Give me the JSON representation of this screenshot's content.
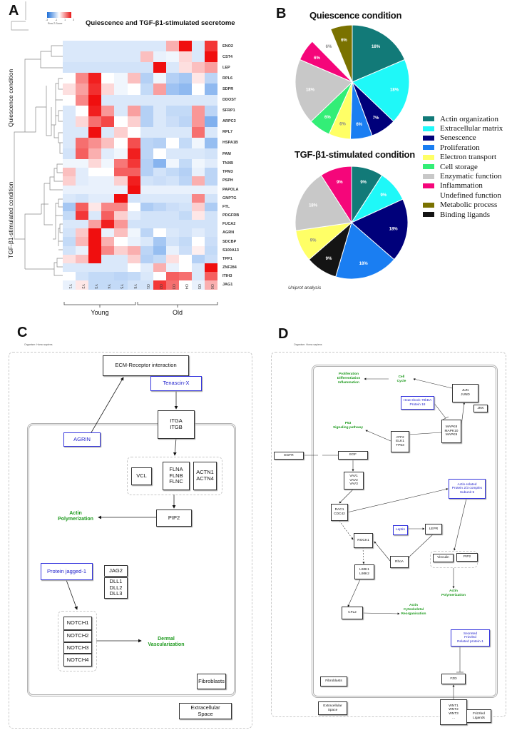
{
  "panel_a": {
    "letter": "A",
    "title": "Quiescence and TGF-β1-stimulated  secretome",
    "color_key": {
      "ticks": [
        "-3",
        "-1",
        "1",
        "3"
      ],
      "label": "Row Z-Score"
    },
    "side_labels": [
      "Quiescence condition",
      "TGF-β1-stimulated condition"
    ],
    "groups": [
      "Young",
      "Old"
    ],
    "chart_data": {
      "type": "heatmap",
      "title": "Quiescence and TGF-β1-stimulated  secretome",
      "columns": [
        "Y1",
        "Y2",
        "Y3",
        "Y4",
        "Y5",
        "Y6",
        "O1",
        "O2",
        "O3",
        "O4",
        "O5",
        "O6"
      ],
      "rows": [
        "ENO2",
        "CST4",
        "LEP",
        "RPL6",
        "SDPR",
        "DDOST",
        "SFRP1",
        "ARPC3",
        "RPL7",
        "HSPA1B",
        "PAM",
        "TNXB",
        "TPM3",
        "PSPH",
        "PAPOLA",
        "GNPTG",
        "FTL",
        "PDGFRB",
        "FUCA2",
        "AGRN",
        "SDCBP",
        "S100A13",
        "TPP1",
        "ZNF284",
        "ITIH3",
        "JAG1"
      ],
      "zrange": [
        -3,
        3
      ],
      "values": [
        [
          -0.5,
          -0.5,
          -0.5,
          -0.5,
          -0.5,
          -0.5,
          -0.5,
          -0.5,
          1,
          3,
          -0.5,
          2.5
        ],
        [
          -0.5,
          -0.5,
          -0.5,
          -0.5,
          -0.5,
          -0.5,
          0.8,
          -0.3,
          -0.2,
          0.5,
          -0.5,
          3
        ],
        [
          -0.6,
          -0.6,
          -0.6,
          -0.6,
          -0.6,
          -0.6,
          -0.6,
          3,
          -0.5,
          0.4,
          0.8,
          1.2
        ],
        [
          0,
          1.5,
          2.8,
          0,
          -0.2,
          0.8,
          -1,
          -0.2,
          -1,
          -1.2,
          0.3,
          -0.9
        ],
        [
          0.4,
          1.2,
          2.6,
          0.5,
          -0.2,
          0,
          -0.8,
          1.2,
          -1.3,
          -1.5,
          0,
          -1.5
        ],
        [
          0,
          1.5,
          3,
          -0.5,
          -0.5,
          -0.5,
          -0.5,
          -0.5,
          -0.5,
          -0.5,
          -0.5,
          -0.5
        ],
        [
          -0.5,
          0,
          2.8,
          1.3,
          -0.5,
          1.2,
          -1,
          -0.5,
          -0.8,
          -0.8,
          1.3,
          -0.9
        ],
        [
          -0.5,
          0.5,
          1.8,
          2.3,
          0,
          0.6,
          -1,
          -0.5,
          -0.7,
          -0.9,
          1.3,
          -1.7
        ],
        [
          -0.5,
          -0.5,
          3,
          -0.5,
          0.6,
          0,
          -0.5,
          -0.5,
          -0.5,
          -0.5,
          1.8,
          -0.5
        ],
        [
          -0.5,
          1.8,
          1.4,
          0.8,
          0,
          2.2,
          -0.9,
          -1,
          0,
          -0.8,
          -0.2,
          -1.4
        ],
        [
          -0.6,
          2,
          1,
          -0.4,
          -0.2,
          2.8,
          -0.9,
          0,
          -0.5,
          -0.5,
          -0.5,
          -0.6
        ],
        [
          -0.2,
          -0.2,
          0.5,
          -0.2,
          1.7,
          2.5,
          -1,
          -1.6,
          -0.2,
          -0.8,
          -0.2,
          -0.4
        ],
        [
          0.8,
          -0.4,
          0,
          0,
          2,
          2,
          -1,
          -0.6,
          -0.8,
          -1,
          -0.3,
          -0.9
        ],
        [
          0.6,
          -0.4,
          -0.3,
          -0.3,
          0.6,
          2.8,
          -0.6,
          -0.7,
          -0.6,
          -0.9,
          1,
          -0.9
        ],
        [
          -0.3,
          -0.3,
          -0.3,
          -0.3,
          -0.3,
          3,
          -0.3,
          -0.3,
          -0.3,
          -0.3,
          -0.3,
          -0.3
        ],
        [
          -0.5,
          -0.6,
          -0.4,
          -0.4,
          3,
          -0.6,
          -0.5,
          -0.5,
          -0.5,
          -0.5,
          1.5,
          -0.6
        ],
        [
          -1.2,
          2,
          0.3,
          1.5,
          1.5,
          0,
          -1.1,
          -0.9,
          -0.7,
          -0.6,
          0.6,
          -1.1
        ],
        [
          -0.8,
          2.5,
          -0.5,
          2,
          0.6,
          -0.4,
          -0.6,
          -0.6,
          -0.6,
          -0.8,
          0.3,
          -0.6
        ],
        [
          -0.5,
          -0.5,
          1.2,
          2.8,
          1.3,
          -0.6,
          -0.6,
          -0.6,
          -0.6,
          -0.6,
          -0.6,
          -0.6
        ],
        [
          -0.6,
          0.7,
          3,
          -0.3,
          0.8,
          -0.2,
          -0.9,
          0,
          -0.5,
          -0.6,
          -0.4,
          -0.6
        ],
        [
          -0.8,
          0.9,
          3,
          1,
          0,
          -0.3,
          -0.5,
          -1.2,
          -0.6,
          -0.8,
          0,
          -0.7
        ],
        [
          -0.6,
          -0.3,
          3,
          1.5,
          0.6,
          1,
          -0.9,
          -1.4,
          -0.3,
          -0.7,
          0.2,
          -0.8
        ],
        [
          0.4,
          0.8,
          3,
          -0.5,
          -0.5,
          0.6,
          -1,
          -0.8,
          0.4,
          0,
          -1,
          -0.7
        ],
        [
          -0.5,
          -0.5,
          -0.5,
          -0.5,
          -0.5,
          0,
          -0.4,
          1,
          -0.3,
          0,
          -0.5,
          3
        ],
        [
          0,
          -0.6,
          -0.8,
          -0.8,
          -0.9,
          -0.8,
          -0.5,
          0,
          2,
          1.8,
          -0.5,
          2
        ],
        [
          -0.3,
          0.3,
          -0.8,
          -0.8,
          -0.8,
          -0.6,
          -0.6,
          2.5,
          1.8,
          0,
          -0.3,
          1
        ]
      ]
    }
  },
  "panel_b": {
    "letter": "B",
    "footnote": "Uniprot analysis",
    "legend": [
      {
        "key": "actin",
        "label": "Actin organization",
        "color": "#127a78"
      },
      {
        "key": "ecm",
        "label": "Extracellular matrix",
        "color": "#1ff8f8"
      },
      {
        "key": "sen",
        "label": "Senescence",
        "color": "#00007a"
      },
      {
        "key": "pro",
        "label": "Proliferation",
        "color": "#1a7ef2"
      },
      {
        "key": "ele",
        "label": "Electron transport",
        "color": "#ffff66"
      },
      {
        "key": "cel",
        "label": "Cell storage",
        "color": "#33ee77"
      },
      {
        "key": "enz",
        "label": "Enzymatic function",
        "color": "#c8c8c8"
      },
      {
        "key": "inf",
        "label": "Inflammation",
        "color": "#f5067a"
      },
      {
        "key": "und",
        "label": "Undefined function",
        "color": "#ffffff"
      },
      {
        "key": "met",
        "label": "Metabolic process",
        "color": "#7a7200"
      },
      {
        "key": "bin",
        "label": "Binding ligands",
        "color": "#141414"
      }
    ],
    "chart_data": [
      {
        "type": "pie",
        "title": "Quiescence condition",
        "slices": [
          {
            "key": "actin",
            "value": 18,
            "label": "18%"
          },
          {
            "key": "ecm",
            "value": 18,
            "label": "18%"
          },
          {
            "key": "sen",
            "value": 7,
            "label": "7%"
          },
          {
            "key": "pro",
            "value": 6,
            "label": "6%"
          },
          {
            "key": "ele",
            "value": 6,
            "label": "6%"
          },
          {
            "key": "cel",
            "value": 6,
            "label": "6%"
          },
          {
            "key": "enz",
            "value": 18,
            "label": "18%"
          },
          {
            "key": "inf",
            "value": 6,
            "label": "6%"
          },
          {
            "key": "und",
            "value": 6,
            "label": "6%"
          },
          {
            "key": "met",
            "value": 6,
            "label": "6%"
          }
        ]
      },
      {
        "type": "pie",
        "title": "TGF-β1-stimulated condition",
        "slices": [
          {
            "key": "actin",
            "value": 9,
            "label": "9%"
          },
          {
            "key": "ecm",
            "value": 9,
            "label": "9%"
          },
          {
            "key": "sen",
            "value": 18,
            "label": "18%"
          },
          {
            "key": "pro",
            "value": 18,
            "label": "18%"
          },
          {
            "key": "bin",
            "value": 9,
            "label": "9%"
          },
          {
            "key": "ele",
            "value": 9,
            "label": "9%"
          },
          {
            "key": "enz",
            "value": 18,
            "label": "18%"
          },
          {
            "key": "inf",
            "value": 9,
            "label": "9%"
          }
        ]
      }
    ]
  },
  "panel_c": {
    "letter": "C",
    "organism": "Organism: Homo sapiens",
    "ecm": "ECM-Receptor interaction",
    "tenascin": "Tenascin-X",
    "itg": "ITGA\nITGB",
    "agrin": "AGRIN",
    "vcl": "VCL",
    "fln": "FLNA\nFLNB\nFLNC",
    "actn": "ACTN1\nACTN4",
    "pip2": "PIP2",
    "actin_poly": "Actin\nPolymerization",
    "jagged": "Protein jagged-1",
    "jag2": "JAG2",
    "dll": "DLL1\nDLL2\nDLL3",
    "notch": [
      "NOTCH1",
      "NOTCH2",
      "NOTCH3",
      "NOTCH4"
    ],
    "dermal": "Dermal\nVascularization",
    "fibroblasts": "Fibroblasts",
    "extracellular": "Extracellular\nSpace"
  },
  "panel_d": {
    "letter": "D",
    "organism": "Organism: Homo sapiens",
    "prolif": "Proliferation\nDifferentiation\nInflammation",
    "cell_cycle": "Cell\nCycle",
    "jun": "JUN\nJUND",
    "hsp": "Heat shock 70kDA\nProtein 18",
    "jnk": "JNK",
    "p53": "P53\nSignaling pathway",
    "mapk": "MAPK8\nMAPK10\nMAPK9",
    "atf": "ATF2\nELK1\nTP53",
    "egfr": "EGFR",
    "egf": "EGF",
    "vav": "VAV1\nVAV2\nVAV3",
    "rac": "RAC1\nCDC42",
    "arp": "Actin-related\nProtein 2/3 complex\nSubunit 5",
    "leptin": "Leptin",
    "lepr": "LEPR",
    "rock": "ROCK1",
    "rhoa": "RhoA",
    "vinculin": "Vinculin",
    "pip2": "PIP2",
    "actin_poly": "Actin\nPolymerization",
    "limk": "LIMK1\nLIMK2",
    "cfl2": "CFL2",
    "actin_reorg": "Actin\nCytoskeletal\nReorganisation",
    "sfrp": "Secreted\nFrizzled\nRelated protein-1",
    "fibroblasts": "Fibroblasts",
    "fzd": "FZD",
    "extracellular": "Extracellular\nSpace",
    "wnt": "WNT1\nWNT2\nWNT3\n...",
    "frizzled": "Frizzled\nLigands"
  }
}
